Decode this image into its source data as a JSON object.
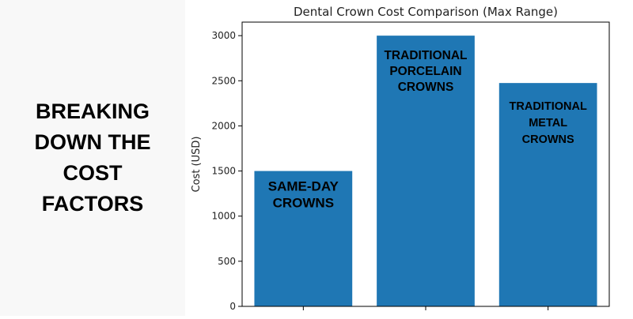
{
  "headline": {
    "lines": [
      "BREAKING",
      "DOWN THE",
      "COST",
      "FACTORS"
    ]
  },
  "colors": {
    "bar": "#1f77b4",
    "left_panel_bg": "#f8f8f8"
  },
  "chart_data": {
    "type": "bar",
    "title": "Dental Crown Cost Comparison (Max Range)",
    "xlabel": "",
    "ylabel": "Cost (USD)",
    "ylim": [
      0,
      3150
    ],
    "yticks": [
      0,
      500,
      1000,
      1500,
      2000,
      2500,
      3000
    ],
    "categories": [
      "Same-Day Crowns",
      "Traditional Porcelain Crowns",
      "Traditional Metal Crowns"
    ],
    "bar_labels": [
      [
        "SAME-DAY",
        "CROWNS"
      ],
      [
        "TRADITIONAL",
        "PORCELAIN",
        "CROWNS"
      ],
      [
        "TRADITIONAL",
        "METAL",
        "CROWNS"
      ]
    ],
    "values": [
      1500,
      3000,
      2475
    ],
    "grid": false,
    "legend": "none"
  }
}
